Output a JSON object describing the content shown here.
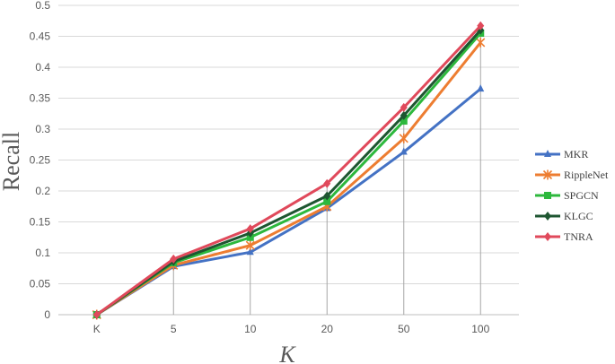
{
  "chart_data": {
    "type": "line",
    "categories": [
      "K",
      "5",
      "10",
      "20",
      "50",
      "100"
    ],
    "xlabel": "K",
    "ylabel": "Recall",
    "ylim": [
      0,
      0.5
    ],
    "yticks": [
      "0",
      "0.05",
      "0.1",
      "0.15",
      "0.2",
      "0.25",
      "0.3",
      "0.35",
      "0.4",
      "0.45",
      "0.5"
    ],
    "grid": true,
    "legend_position": "right",
    "series": [
      {
        "name": "MKR",
        "color": "#4472C4",
        "marker": "triangle",
        "values": [
          0,
          0.078,
          0.101,
          0.172,
          0.263,
          0.365
        ]
      },
      {
        "name": "RippleNet",
        "color": "#ED7D31",
        "marker": "star",
        "values": [
          0,
          0.08,
          0.112,
          0.175,
          0.285,
          0.44
        ]
      },
      {
        "name": "SPGCN",
        "color": "#2DB83D",
        "marker": "square",
        "values": [
          0,
          0.084,
          0.125,
          0.183,
          0.313,
          0.455
        ]
      },
      {
        "name": "KLGC",
        "color": "#1E5631",
        "marker": "diamond",
        "values": [
          0,
          0.086,
          0.132,
          0.192,
          0.322,
          0.46
        ]
      },
      {
        "name": "TNRA",
        "color": "#E0495B",
        "marker": "diamond",
        "values": [
          0,
          0.09,
          0.139,
          0.212,
          0.335,
          0.467
        ]
      }
    ]
  }
}
